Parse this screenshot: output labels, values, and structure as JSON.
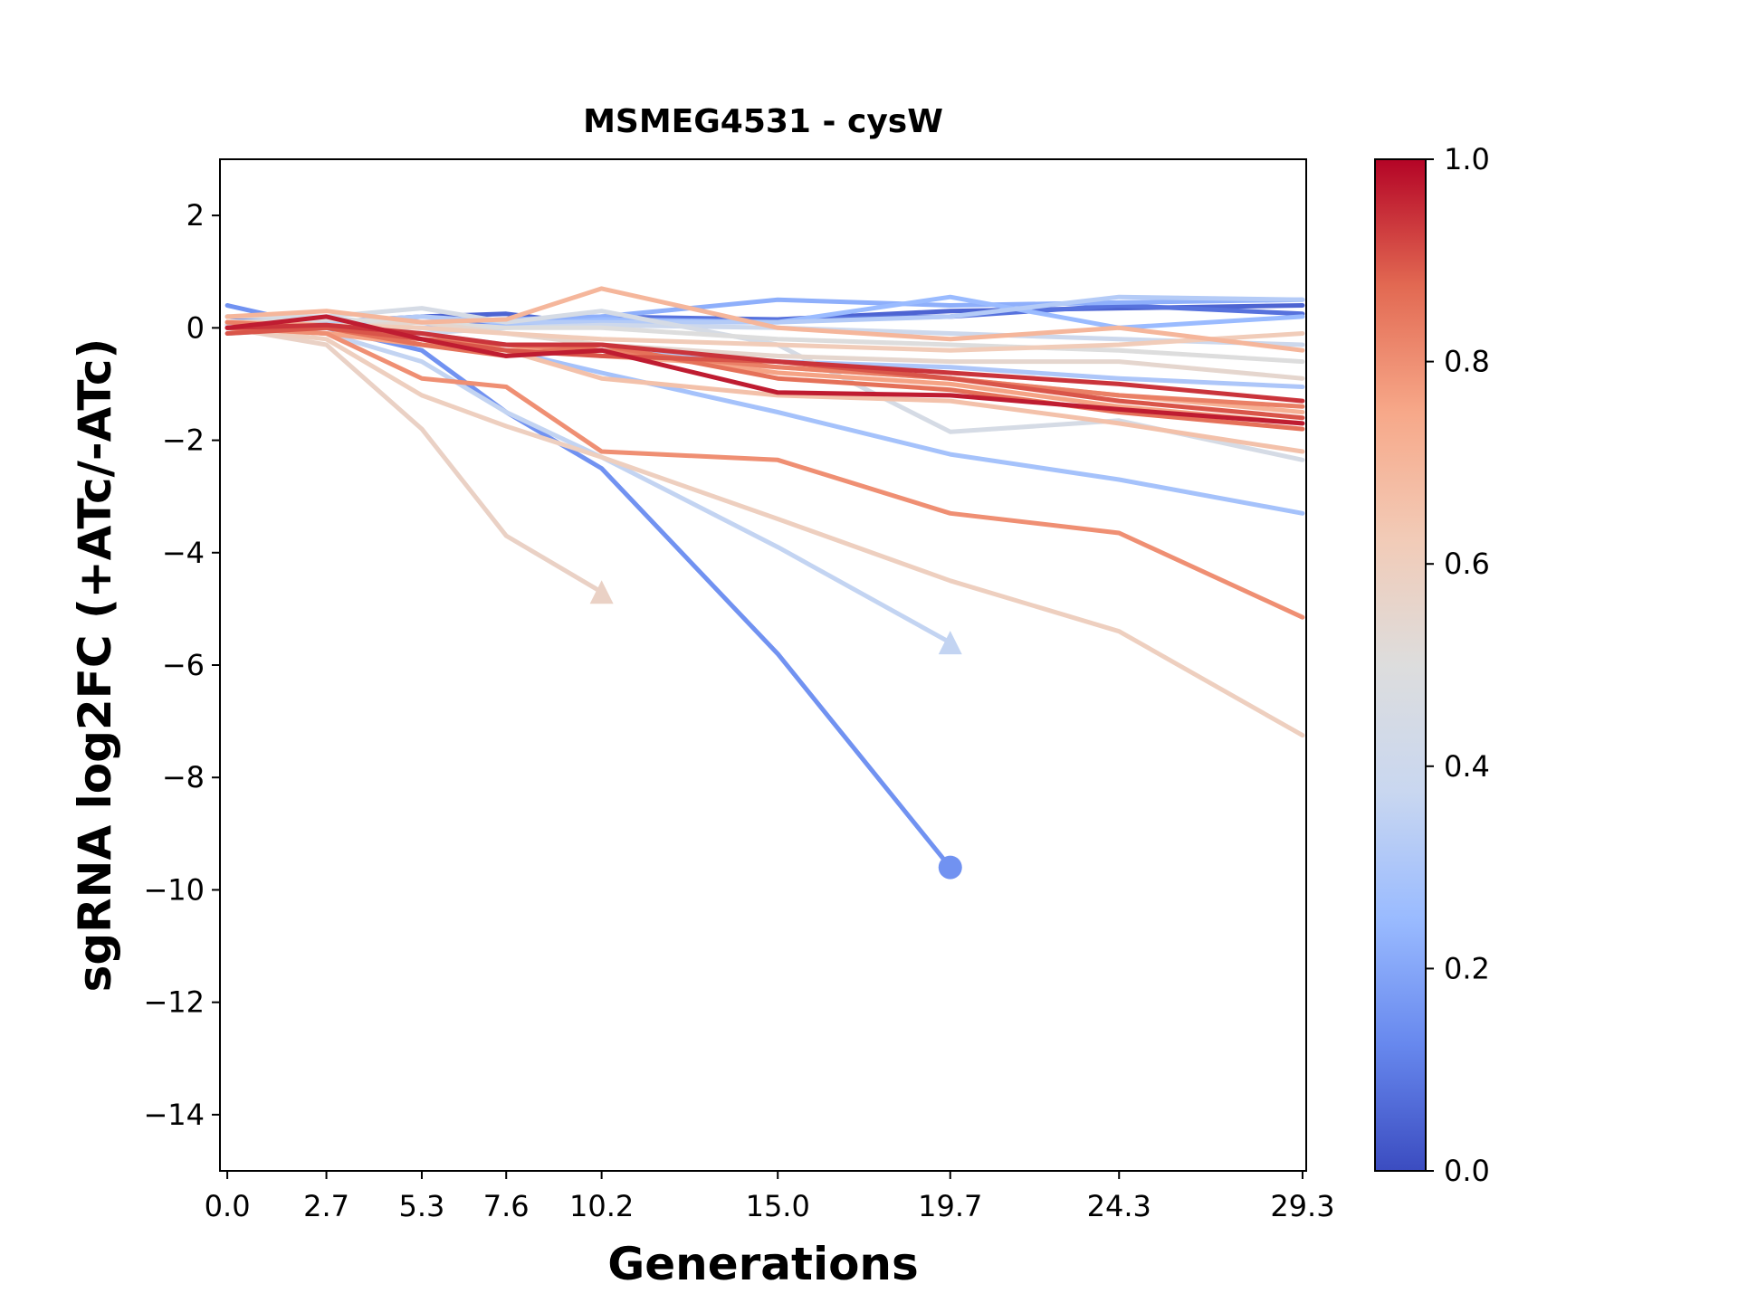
{
  "chart_data": {
    "type": "line",
    "title": "MSMEG4531 - cysW",
    "xlabel": "Generations",
    "ylabel": "sgRNA log2FC (+ATc/-ATc)",
    "x_ticks": [
      "0.0",
      "2.7",
      "5.3",
      "7.6",
      "10.2",
      "15.0",
      "19.7",
      "24.3",
      "29.3"
    ],
    "x_tick_values": [
      0.0,
      2.7,
      5.3,
      7.6,
      10.2,
      15.0,
      19.7,
      24.3,
      29.3
    ],
    "y_ticks": [
      "2",
      "0",
      "−2",
      "−4",
      "−6",
      "−8",
      "−10",
      "−12",
      "−14"
    ],
    "y_tick_values": [
      2,
      0,
      -2,
      -4,
      -6,
      -8,
      -10,
      -12,
      -14
    ],
    "xlim": [
      -0.2,
      29.4
    ],
    "ylim": [
      -15,
      3
    ],
    "grid": false,
    "colorbar": {
      "colormap": "coolwarm",
      "ticks": [
        "0.0",
        "0.2",
        "0.4",
        "0.6",
        "0.8",
        "1.0"
      ],
      "tick_values": [
        0.0,
        0.2,
        0.4,
        0.6,
        0.8,
        1.0
      ],
      "stops": [
        "#3b4cc0",
        "#6788ee",
        "#9abbff",
        "#c9d7f0",
        "#dddddd",
        "#f2cbb7",
        "#f7a889",
        "#e26952",
        "#b40426"
      ]
    },
    "series": [
      {
        "c": 0.05,
        "x": [
          0,
          2.7,
          5.3,
          7.6,
          10.2,
          15.0,
          19.7,
          24.3,
          29.3
        ],
        "y": [
          0.2,
          0.1,
          0.2,
          0.25,
          0.05,
          0.15,
          0.3,
          0.35,
          0.4
        ]
      },
      {
        "c": 0.08,
        "x": [
          0,
          2.7,
          5.3,
          7.6,
          10.2,
          15.0,
          19.7,
          24.3,
          29.3
        ],
        "y": [
          0.05,
          0.15,
          0.1,
          0.1,
          0.2,
          0.15,
          0.2,
          0.4,
          0.25
        ]
      },
      {
        "c": 0.15,
        "x": [
          0,
          2.7,
          5.3,
          7.6,
          10.2,
          15.0,
          19.7
        ],
        "y": [
          0.4,
          0.0,
          -0.4,
          -1.5,
          -2.5,
          -5.8,
          -9.6
        ],
        "end_marker": "circle"
      },
      {
        "c": 0.22,
        "x": [
          0,
          2.7,
          5.3,
          7.6,
          10.2,
          15.0,
          19.7,
          24.3,
          29.3
        ],
        "y": [
          0.0,
          0.1,
          0.1,
          0.15,
          0.2,
          0.5,
          0.4,
          0.45,
          0.5
        ]
      },
      {
        "c": 0.25,
        "x": [
          0,
          2.7,
          5.3,
          7.6,
          10.2,
          15.0,
          19.7,
          24.3,
          29.3
        ],
        "y": [
          0.1,
          0.05,
          0.0,
          0.05,
          0.15,
          0.1,
          0.55,
          0.0,
          0.2
        ]
      },
      {
        "c": 0.28,
        "x": [
          0,
          2.7,
          5.3,
          7.6,
          10.2,
          15.0,
          19.7,
          24.3,
          29.3
        ],
        "y": [
          -0.1,
          0.0,
          -0.2,
          -0.4,
          -0.8,
          -1.5,
          -2.25,
          -2.7,
          -3.3
        ]
      },
      {
        "c": 0.3,
        "x": [
          0,
          2.7,
          5.3,
          7.6,
          10.2,
          15.0,
          19.7,
          24.3,
          29.3
        ],
        "y": [
          0.0,
          0.0,
          -0.1,
          -0.3,
          -0.4,
          -0.6,
          -0.7,
          -0.9,
          -1.05
        ]
      },
      {
        "c": 0.32,
        "x": [
          0,
          2.7,
          5.3,
          7.6,
          10.2,
          15.0,
          19.7,
          24.3,
          29.3
        ],
        "y": [
          0.1,
          0.1,
          0.2,
          0.1,
          0.1,
          0.1,
          0.2,
          0.55,
          0.5
        ]
      },
      {
        "c": 0.36,
        "x": [
          0,
          2.7,
          5.3,
          7.6,
          10.2,
          15.0,
          19.7
        ],
        "y": [
          0.0,
          -0.1,
          -0.6,
          -1.5,
          -2.3,
          -3.9,
          -5.6
        ],
        "end_marker": "triangle"
      },
      {
        "c": 0.4,
        "x": [
          0,
          2.7,
          5.3,
          7.6,
          10.2,
          15.0,
          19.7,
          24.3,
          29.3
        ],
        "y": [
          0.05,
          0.0,
          -0.1,
          0.0,
          0.05,
          0.0,
          -0.1,
          -0.2,
          -0.3
        ]
      },
      {
        "c": 0.45,
        "x": [
          0,
          2.7,
          5.3,
          7.6,
          10.2,
          15.0,
          19.7,
          24.3,
          29.3
        ],
        "y": [
          0.2,
          0.2,
          0.35,
          0.1,
          0.3,
          -0.3,
          -1.85,
          -1.65,
          -2.35
        ]
      },
      {
        "c": 0.5,
        "x": [
          0,
          2.7,
          5.3,
          7.6,
          10.2,
          15.0,
          19.7,
          24.3,
          29.3
        ],
        "y": [
          0.1,
          0.15,
          0.1,
          0.0,
          0.0,
          -0.2,
          -0.3,
          -0.4,
          -0.6
        ]
      },
      {
        "c": 0.55,
        "x": [
          0,
          2.7,
          5.3,
          7.6,
          10.2,
          15.0,
          19.7,
          24.3,
          29.3
        ],
        "y": [
          0.0,
          0.0,
          0.1,
          -0.1,
          -0.3,
          -0.5,
          -0.6,
          -0.6,
          -0.9
        ]
      },
      {
        "c": 0.58,
        "x": [
          0,
          2.7,
          5.3,
          7.6,
          10.2
        ],
        "y": [
          0.0,
          -0.3,
          -1.8,
          -3.7,
          -4.7
        ],
        "end_marker": "triangle"
      },
      {
        "c": 0.6,
        "x": [
          0,
          2.7,
          5.3,
          7.6,
          10.2,
          15.0,
          19.7,
          24.3,
          29.3
        ],
        "y": [
          0.0,
          -0.2,
          -1.2,
          -1.75,
          -2.3,
          -3.4,
          -4.5,
          -5.4,
          -7.25
        ]
      },
      {
        "c": 0.62,
        "x": [
          0,
          2.7,
          5.3,
          7.6,
          10.2,
          15.0,
          19.7,
          24.3,
          29.3
        ],
        "y": [
          0.1,
          0.05,
          0.0,
          -0.1,
          -0.2,
          -0.3,
          -0.4,
          -0.3,
          -0.1
        ]
      },
      {
        "c": 0.66,
        "x": [
          0,
          2.7,
          5.3,
          7.6,
          10.2,
          15.0,
          19.7,
          24.3,
          29.3
        ],
        "y": [
          0.0,
          -0.1,
          -0.2,
          -0.4,
          -0.9,
          -1.2,
          -1.3,
          -1.7,
          -2.2
        ]
      },
      {
        "c": 0.7,
        "x": [
          0,
          2.7,
          5.3,
          7.6,
          10.2,
          15.0,
          19.7,
          24.3,
          29.3
        ],
        "y": [
          0.2,
          0.3,
          0.1,
          0.15,
          0.7,
          0.0,
          -0.2,
          0.0,
          -0.4
        ]
      },
      {
        "c": 0.72,
        "x": [
          0,
          2.7,
          5.3,
          7.6,
          10.2,
          15.0,
          19.7,
          24.3,
          29.3
        ],
        "y": [
          0.1,
          0.05,
          -0.3,
          -0.3,
          -0.5,
          -0.7,
          -0.9,
          -1.2,
          -1.5
        ]
      },
      {
        "c": 0.76,
        "x": [
          0,
          2.7,
          5.3,
          7.6,
          10.2,
          15.0,
          19.7,
          24.3,
          29.3
        ],
        "y": [
          0.0,
          -0.1,
          -0.3,
          -0.4,
          -0.4,
          -0.8,
          -1.0,
          -1.4,
          -1.7
        ]
      },
      {
        "c": 0.8,
        "x": [
          0,
          2.7,
          5.3,
          7.6,
          10.2,
          15.0,
          19.7,
          24.3,
          29.3
        ],
        "y": [
          0.0,
          -0.1,
          -0.9,
          -1.05,
          -2.2,
          -2.35,
          -3.3,
          -3.65,
          -5.15
        ]
      },
      {
        "c": 0.83,
        "x": [
          0,
          2.7,
          5.3,
          7.6,
          10.2,
          15.0,
          19.7,
          24.3,
          29.3
        ],
        "y": [
          0.1,
          0.0,
          -0.2,
          -0.3,
          -0.4,
          -0.7,
          -0.9,
          -1.2,
          -1.4
        ]
      },
      {
        "c": 0.86,
        "x": [
          0,
          2.7,
          5.3,
          7.6,
          10.2,
          15.0,
          19.7,
          24.3,
          29.3
        ],
        "y": [
          0.0,
          0.0,
          -0.3,
          -0.5,
          -0.3,
          -0.9,
          -1.1,
          -1.5,
          -1.8
        ]
      },
      {
        "c": 0.9,
        "x": [
          0,
          2.7,
          5.3,
          7.6,
          10.2,
          15.0,
          19.7,
          24.3,
          29.3
        ],
        "y": [
          -0.1,
          0.0,
          -0.2,
          -0.4,
          -0.5,
          -0.6,
          -0.9,
          -1.3,
          -1.6
        ]
      },
      {
        "c": 0.94,
        "x": [
          0,
          2.7,
          5.3,
          7.6,
          10.2,
          15.0,
          19.7,
          24.3,
          29.3
        ],
        "y": [
          0.0,
          0.05,
          -0.1,
          -0.3,
          -0.3,
          -0.6,
          -0.8,
          -1.0,
          -1.3
        ]
      },
      {
        "c": 0.97,
        "x": [
          0,
          2.7,
          5.3,
          7.6,
          10.2,
          15.0,
          19.7,
          24.3,
          29.3
        ],
        "y": [
          0.0,
          0.2,
          -0.2,
          -0.5,
          -0.4,
          -1.15,
          -1.2,
          -1.45,
          -1.7
        ]
      }
    ]
  }
}
